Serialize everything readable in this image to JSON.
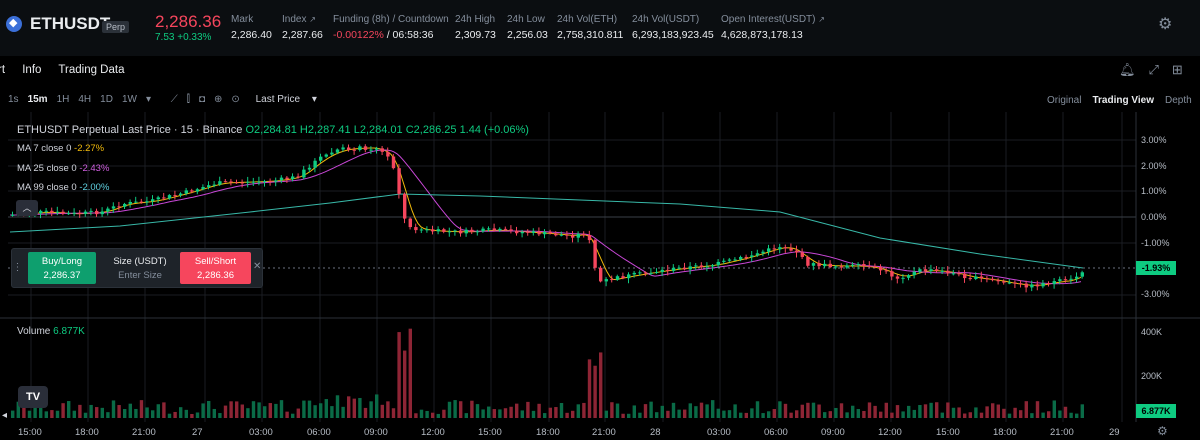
{
  "header": {
    "symbol": "ETHUSDT",
    "badge": "Perp",
    "last_price": "2,286.36",
    "change_abs": "7.53",
    "change_pct": "+0.33%",
    "stats": [
      {
        "label": "Mark",
        "value": "2,286.40"
      },
      {
        "label": "Index",
        "value": "2,287.66"
      },
      {
        "label": "Funding (8h) / Countdown",
        "value": "-0.00122%",
        "value2": "/ 06:58:36"
      },
      {
        "label": "24h High",
        "value": "2,309.73"
      },
      {
        "label": "24h Low",
        "value": "2,256.03"
      },
      {
        "label": "24h Vol(ETH)",
        "value": "2,758,310.811"
      },
      {
        "label": "24h Vol(USDT)",
        "value": "6,293,183,923.45"
      },
      {
        "label": "Open Interest(USDT)",
        "value": "4,628,873,178.13"
      }
    ]
  },
  "tabs": [
    "rt",
    "Info",
    "Trading Data"
  ],
  "toolbar": {
    "intervals": [
      "1s",
      "15m",
      "1H",
      "4H",
      "1D",
      "1W"
    ],
    "price_type": "Last Price",
    "views": [
      "Original",
      "Trading View",
      "Depth"
    ]
  },
  "legend": {
    "title": "ETHUSDT Perpetual Last Price · 15 · Binance",
    "o": "O2,284.81",
    "h": "H2,287.41",
    "l": "L2,284.01",
    "c": "C2,286.25",
    "chg": "1.44 (+0.06%)",
    "ma7_label": "MA 7 close 0",
    "ma7_value": "-2.27%",
    "ma25_label": "MA 25 close 0",
    "ma25_value": "-2.43%",
    "ma99_label": "MA 99 close 0",
    "ma99_value": "-2.00%",
    "volume_label": "Volume",
    "volume_value": "6.877K"
  },
  "order_panel": {
    "buy_label": "Buy/Long",
    "buy_price": "2,286.37",
    "size_label": "Size (USDT)",
    "size_placeholder": "Enter Size",
    "sell_label": "Sell/Short",
    "sell_price": "2,286.36"
  },
  "price_axis": {
    "ticks": [
      "3.00%",
      "2.00%",
      "1.00%",
      "0.00%",
      "-1.00%",
      "-3.00%"
    ],
    "last": "-1.93%"
  },
  "volume_axis": {
    "ticks": [
      "400K",
      "200K"
    ],
    "last": "6.877K"
  },
  "time_axis": [
    "15:00",
    "18:00",
    "21:00",
    "27",
    "03:00",
    "06:00",
    "09:00",
    "12:00",
    "15:00",
    "18:00",
    "21:00",
    "28",
    "03:00",
    "06:00",
    "09:00",
    "12:00",
    "15:00",
    "18:00",
    "21:00",
    "29"
  ],
  "colors": {
    "up": "#0ecb81",
    "down": "#f6465d",
    "ma7": "#f0b90b",
    "ma25": "#c847d6",
    "ma99": "#38b8a8"
  }
}
